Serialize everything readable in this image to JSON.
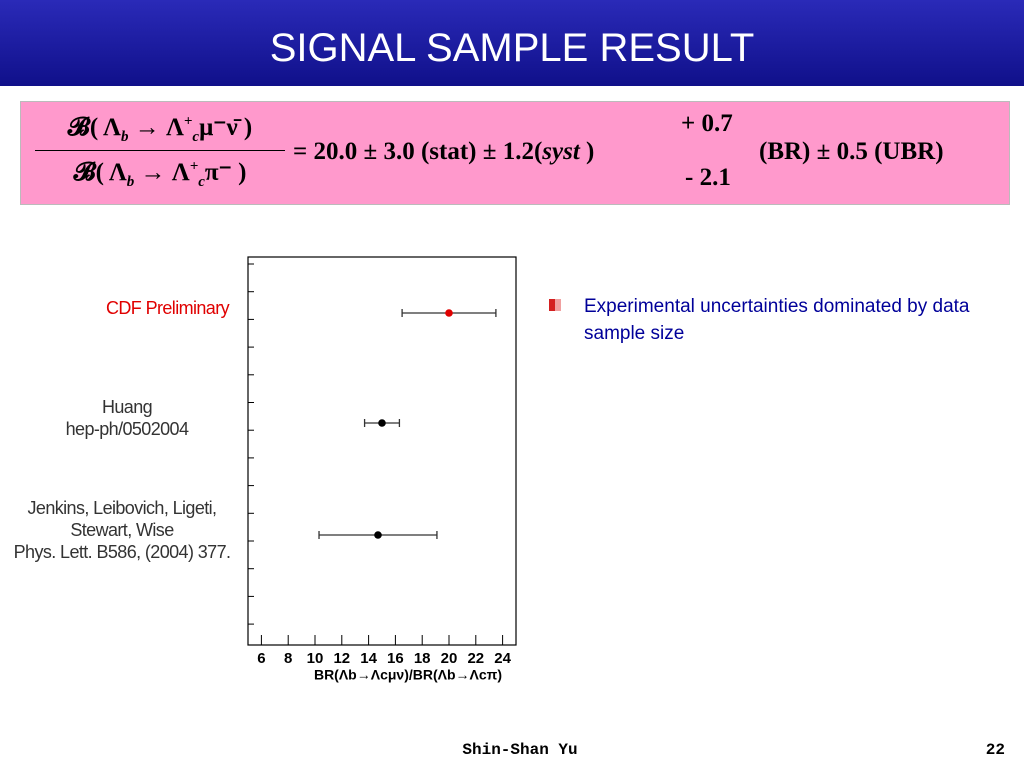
{
  "header": {
    "title": "SIGNAL SAMPLE RESULT"
  },
  "formula": {
    "num": {
      "pre": "𝓑( Λ",
      "sub1": "b",
      "arrow": " → Λ",
      "sup": "+",
      "sub2": "c",
      "rest": "μ⁻ν̄ )"
    },
    "den": {
      "pre": "𝓑( Λ",
      "sub1": "b",
      "arrow": " → Λ",
      "sup": "+",
      "sub2": "c",
      "rest": "π⁻ )"
    },
    "main": "= 20.0 ± 3.0 (stat) ± 1.2(",
    "syst": "syst",
    "close": " )",
    "upper": "+ 0.7",
    "lower": "- 2.1",
    "tail": "(BR) ± 0.5 (UBR)"
  },
  "bullet": "Experimental uncertainties dominated by data sample size",
  "footer": {
    "author": "Shin-Shan Yu",
    "page": "22"
  },
  "chart_data": {
    "type": "errorbar",
    "categories": [
      [
        "CDF Preliminary"
      ],
      [
        "Huang",
        "hep-ph/0502004"
      ],
      [
        "Jenkins, Leibovich, Ligeti,",
        "Stewart, Wise",
        "Phys. Lett. B586, (2004) 377."
      ]
    ],
    "category_colors": [
      "#e00000",
      "#333333",
      "#333333"
    ],
    "series": [
      {
        "values": [
          20.0,
          15.0,
          14.7
        ],
        "err_low": [
          3.5,
          1.3,
          4.4
        ],
        "err_high": [
          3.5,
          1.3,
          4.4
        ],
        "colors": [
          "#e00000",
          "#000000",
          "#000000"
        ]
      }
    ],
    "xlabel": "BR(Λb→Λcμν)/BR(Λb→Λcπ)",
    "xlim": [
      5,
      25
    ],
    "xticks": [
      6,
      8,
      10,
      12,
      14,
      16,
      18,
      20,
      22,
      24
    ]
  }
}
